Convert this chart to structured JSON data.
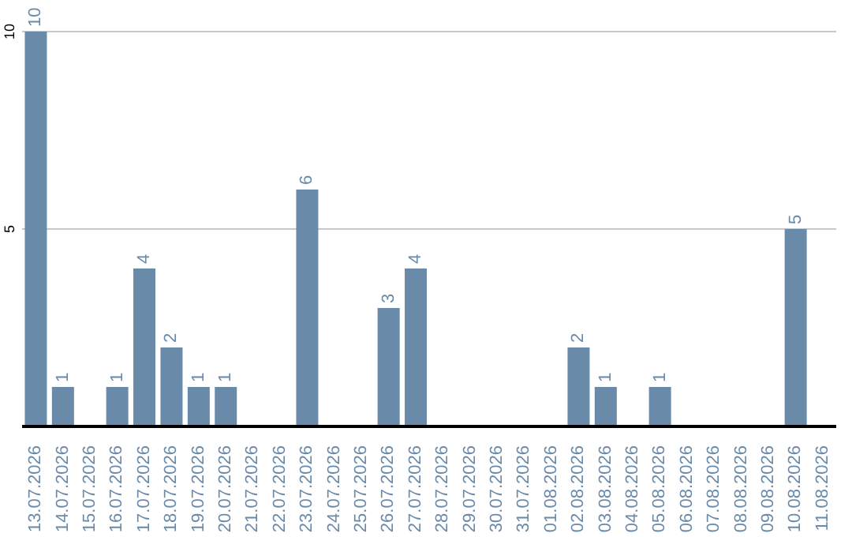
{
  "chart_data": {
    "type": "bar",
    "categories": [
      "13.07.2026",
      "14.07.2026",
      "15.07.2026",
      "16.07.2026",
      "17.07.2026",
      "18.07.2026",
      "19.07.2026",
      "20.07.2026",
      "21.07.2026",
      "22.07.2026",
      "23.07.2026",
      "24.07.2026",
      "25.07.2026",
      "26.07.2026",
      "27.07.2026",
      "28.07.2026",
      "29.07.2026",
      "30.07.2026",
      "31.07.2026",
      "01.08.2026",
      "02.08.2026",
      "03.08.2026",
      "04.08.2026",
      "05.08.2026",
      "06.08.2026",
      "07.08.2026",
      "08.08.2026",
      "09.08.2026",
      "10.08.2026",
      "11.08.2026"
    ],
    "values": [
      10,
      1,
      0,
      1,
      4,
      2,
      1,
      1,
      0,
      0,
      6,
      0,
      0,
      3,
      4,
      0,
      0,
      0,
      0,
      0,
      2,
      1,
      0,
      1,
      0,
      0,
      0,
      0,
      5,
      0
    ],
    "value_labels": [
      "10",
      "1",
      null,
      "1",
      "4",
      "2",
      "1",
      "1",
      null,
      null,
      "6",
      null,
      null,
      "3",
      "4",
      null,
      null,
      null,
      null,
      null,
      "2",
      "1",
      null,
      "1",
      null,
      null,
      null,
      null,
      "5",
      null
    ],
    "color": "#6a8aaa",
    "ylim": [
      0,
      10
    ],
    "yticks": [
      5,
      10
    ],
    "grid": "y"
  }
}
